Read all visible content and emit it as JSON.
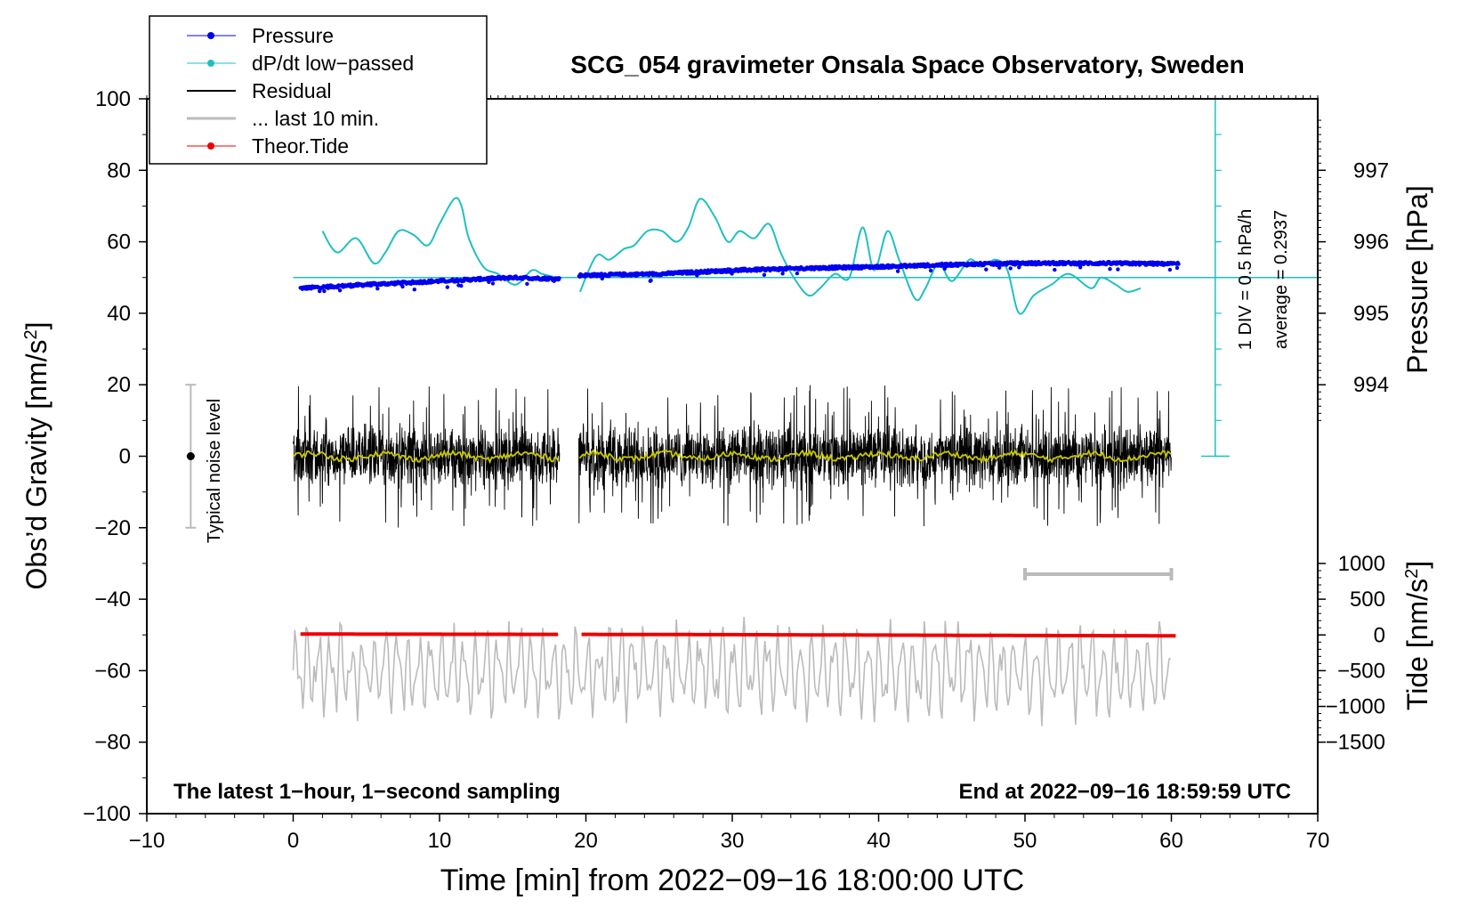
{
  "colors": {
    "pressure": "#0000ee",
    "dpdt": "#20c0c0",
    "residual": "#000000",
    "last10": "#bbbbbb",
    "tide": "#ee0000",
    "smooth": "#c8c800",
    "noise": "#bbbbbb"
  },
  "chart_data": {
    "type": "line",
    "title": "SCG_054 gravimeter Onsala Space Observatory, Sweden",
    "xlabel": "Time [min] from 2022−09−16 18:00:00 UTC",
    "ylabel_main": "Obs’d Gravity [nm/s",
    "ylabel_main_sup": "2",
    "ylabel_main_end": "]",
    "ylabel_pressure": "Pressure [hPa]",
    "ylabel_tide": "Tide [nm/s",
    "ylabel_tide_sup": "2",
    "ylabel_tide_end": "]",
    "xlim": [
      -10,
      70
    ],
    "ylim": [
      -100,
      100
    ],
    "x_ticks": [
      -10,
      0,
      10,
      20,
      30,
      40,
      50,
      60,
      70
    ],
    "x_tick_labels": [
      "−10",
      "0",
      "10",
      "20",
      "30",
      "40",
      "50",
      "60",
      "70"
    ],
    "y_ticks": [
      -100,
      -80,
      -60,
      -40,
      -20,
      0,
      20,
      40,
      60,
      80,
      100
    ],
    "y_tick_labels": [
      "−100",
      "−80",
      "−60",
      "−40",
      "−20",
      "0",
      "20",
      "40",
      "60",
      "80",
      "100"
    ],
    "pressure_axis": {
      "ticks": [
        994,
        995,
        996,
        997
      ],
      "tick_labels": [
        "994",
        "995",
        "996",
        "997"
      ],
      "scale_y_per_hPa": 20,
      "ref_hPa": 995.5,
      "ref_y": 50
    },
    "tide_axis": {
      "ticks": [
        -1500,
        -1000,
        -500,
        0,
        500,
        1000
      ],
      "tick_labels": [
        "−1500",
        "−1000",
        "−500",
        "0",
        "500",
        "1000"
      ],
      "zero_y": -50,
      "scale_y_per_unit": 0.02
    },
    "legend": {
      "position": "top-left",
      "entries": [
        "Pressure",
        "dP/dt low−passed",
        "Residual",
        "... last 10 min.",
        "Theor.Tide"
      ]
    },
    "annotations": {
      "bottom_left": "The latest 1−hour, 1−second sampling",
      "bottom_right": "End at 2022−09−16 18:59:59 UTC",
      "scale_div": "1 DIV = 0.5 hPa/h",
      "scale_avg": "average = 0.2937",
      "noise_label": "Typical noise level",
      "noise_range": [
        -20,
        20
      ],
      "noise_x": -7,
      "last10_range": [
        50,
        60
      ],
      "last10_y": -33,
      "dpdt_baseline_y": 50,
      "dpdt_scale_x": 63,
      "dpdt_scale_range": [
        0,
        100
      ]
    },
    "gap": [
      18.2,
      19.5
    ],
    "series": [
      {
        "name": "dP/dt low−passed",
        "x": [
          2,
          3,
          4.3,
          5.5,
          6.3,
          7.2,
          8.2,
          9.2,
          10,
          11,
          11.5,
          12,
          13,
          14,
          15.2,
          16.3,
          17,
          18,
          19.6,
          20.7,
          21.6,
          22.6,
          23.3,
          24.2,
          25.2,
          26.2,
          27,
          27.8,
          28.8,
          29.7,
          30.5,
          31.5,
          32.5,
          33.3,
          34.2,
          35.2,
          36,
          37,
          38,
          38.9,
          39.7,
          40.6,
          41.4,
          42.5,
          43.2,
          44.1,
          45,
          46.2,
          47,
          48,
          48.8,
          49.6,
          50.6,
          51.8,
          53,
          54.5,
          55.2,
          56.2,
          57,
          57.9
        ],
        "y": [
          63,
          57,
          61,
          54,
          57,
          63,
          62,
          59,
          65,
          72,
          70,
          61,
          53,
          51,
          48,
          52,
          51,
          50,
          46,
          56,
          55,
          58,
          59,
          63,
          63,
          60,
          64,
          72,
          67,
          60,
          63,
          61,
          65,
          57,
          50,
          45,
          47,
          51,
          50,
          64,
          52,
          63,
          55,
          44,
          47,
          54,
          49,
          55,
          53,
          55,
          52,
          40,
          45,
          48,
          51,
          47,
          50,
          48,
          46,
          47
        ]
      },
      {
        "name": "Pressure",
        "x": [
          0.5,
          5,
          10,
          15,
          18.2,
          19.5,
          25,
          30,
          35,
          40,
          45,
          50,
          55,
          60.5
        ],
        "hPa": [
          995.35,
          995.4,
          995.45,
          995.5,
          995.48,
          995.53,
          995.55,
          995.6,
          995.63,
          995.65,
          995.68,
          995.7,
          995.7,
          995.69
        ]
      },
      {
        "name": "Residual",
        "x_range": [
          0,
          60
        ],
        "mean": 0,
        "amplitude_typical": 10,
        "amplitude_max": 20
      },
      {
        "name": "Theor.Tide",
        "x": [
          0.5,
          10,
          18.2,
          19.5,
          30,
          40,
          50,
          60.5
        ],
        "nm_s2": [
          12,
          10,
          8,
          8,
          4,
          -2,
          -8,
          -12
        ]
      },
      {
        "name": "... last 10 min.",
        "x_range": [
          0,
          60
        ],
        "mean": -60,
        "amplitude": 14
      }
    ]
  }
}
